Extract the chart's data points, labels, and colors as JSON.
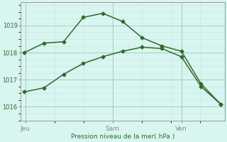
{
  "line1_x": [
    0,
    1,
    2,
    3,
    4,
    5,
    6,
    7,
    8,
    9,
    10
  ],
  "line1_y": [
    1018.0,
    1018.35,
    1018.4,
    1019.3,
    1019.45,
    1019.15,
    1018.55,
    1018.25,
    1018.05,
    1016.85,
    1016.1
  ],
  "line2_x": [
    0,
    1,
    2,
    3,
    4,
    5,
    6,
    7,
    8,
    9,
    10
  ],
  "line2_y": [
    1016.55,
    1016.7,
    1017.2,
    1017.6,
    1017.85,
    1018.05,
    1018.2,
    1018.15,
    1017.85,
    1016.75,
    1016.1
  ],
  "color": "#2d6a2d",
  "bg_color": "#d9f5f0",
  "grid_minor_color": "#c8e8e0",
  "grid_major_color": "#aaccc4",
  "xlabel": "Pression niveau de la mer( hPa )",
  "ylim": [
    1015.5,
    1019.85
  ],
  "yticks": [
    1016,
    1017,
    1018,
    1019
  ],
  "xlim": [
    -0.2,
    10.2
  ],
  "xtick_positions": [
    0.05,
    4.5,
    8.0
  ],
  "xtick_labels": [
    "Jeu",
    "Sam",
    "Ven"
  ],
  "vline_x": [
    0.05,
    4.5,
    8.0
  ],
  "vline_color": "#888888"
}
